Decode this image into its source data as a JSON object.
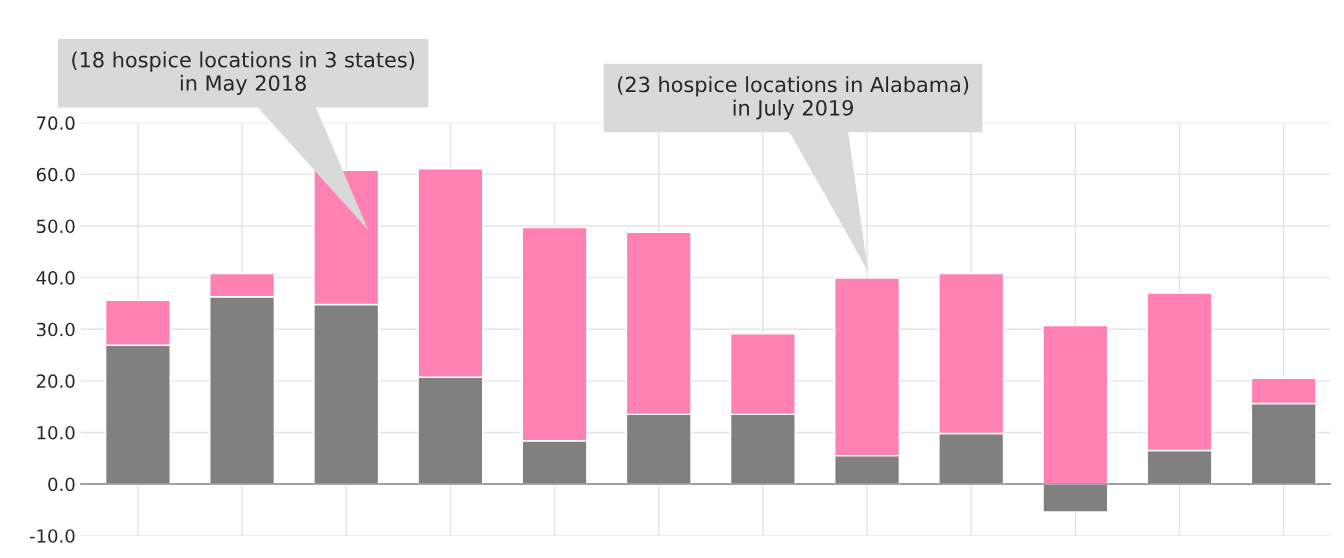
{
  "chart_data": {
    "type": "bar",
    "stacked": true,
    "categories": [
      null,
      null,
      null,
      null,
      null,
      null,
      null,
      null,
      null,
      null,
      null,
      null
    ],
    "series": [
      {
        "color": "#808080",
        "values": [
          26.9,
          36.3,
          34.8,
          20.7,
          8.4,
          13.5,
          13.5,
          5.5,
          9.8,
          -5.4,
          6.5,
          15.6
        ]
      },
      {
        "color": "#ff80b3",
        "values": [
          8.7,
          4.5,
          26.0,
          40.4,
          41.3,
          35.3,
          15.6,
          34.4,
          31.0,
          30.7,
          30.5,
          4.9
        ]
      }
    ],
    "ylim": [
      -10,
      70
    ],
    "yticks": [
      {
        "value": -10,
        "label": "-10.0"
      },
      {
        "value": 0,
        "label": "0.0"
      },
      {
        "value": 10,
        "label": "10.0"
      },
      {
        "value": 20,
        "label": "20.0"
      },
      {
        "value": 30,
        "label": "30.0"
      },
      {
        "value": 40,
        "label": "40.0"
      },
      {
        "value": 50,
        "label": "50.0"
      },
      {
        "value": 60,
        "label": "60.0"
      },
      {
        "value": 70,
        "label": "70.0"
      }
    ],
    "grid": true,
    "tick_labels": "y",
    "annotations": [
      "(18 hospice locations in 3 states)\nin May 2018",
      "(23 hospice locations in Alabama)\nin July 2019"
    ]
  }
}
